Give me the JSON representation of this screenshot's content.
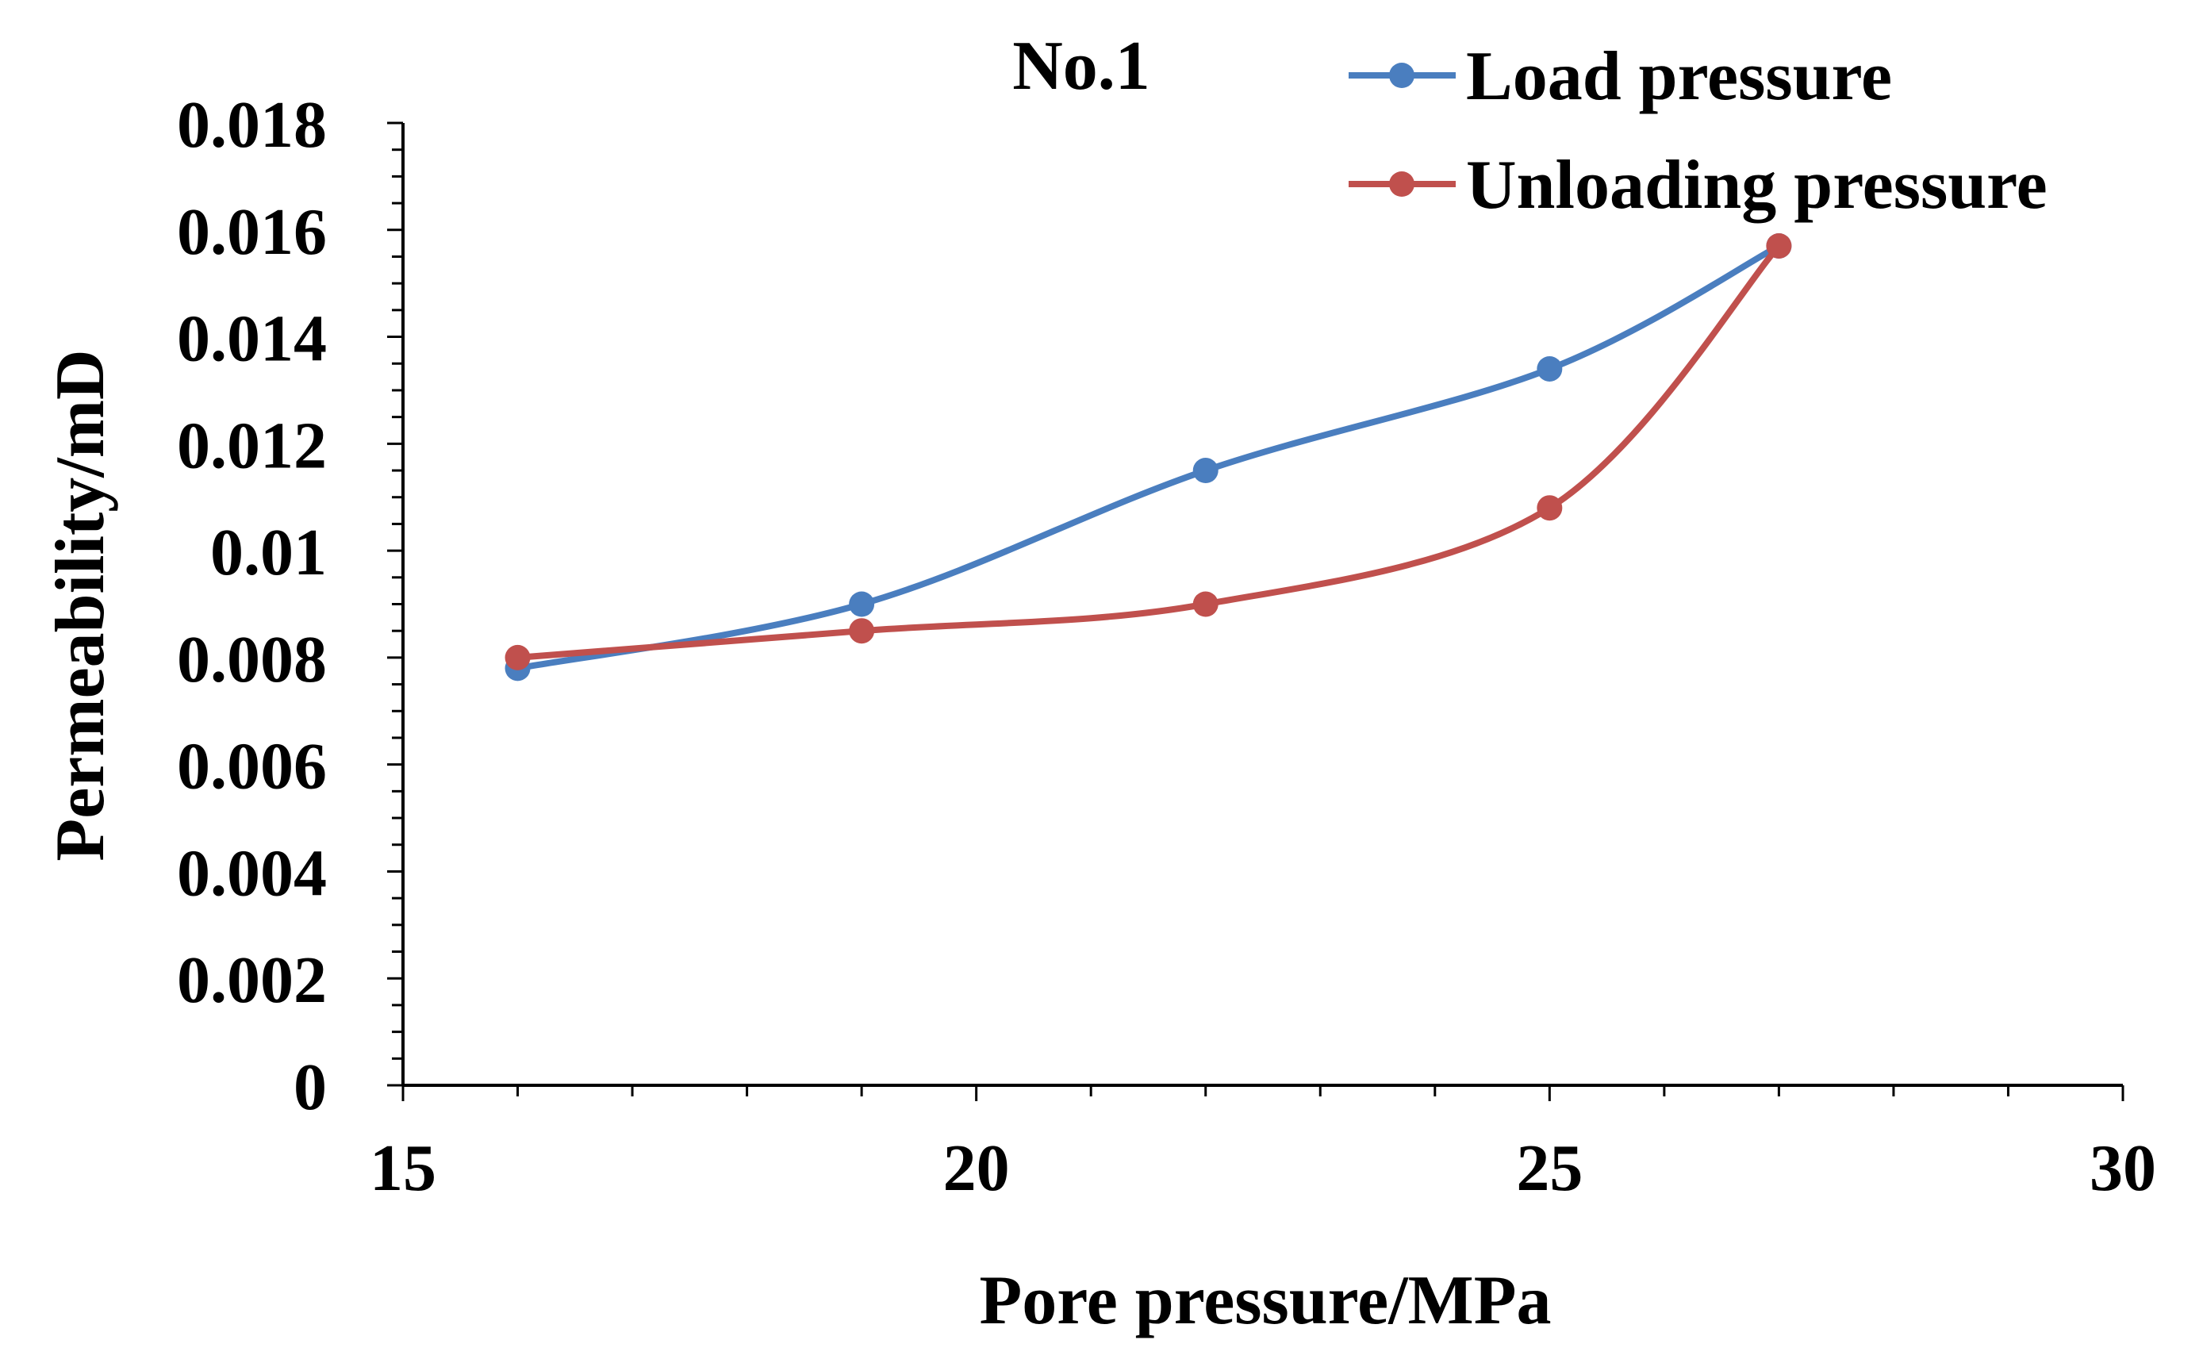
{
  "chart_data": {
    "type": "line",
    "title": "No.1",
    "xlabel": "Pore pressure/MPa",
    "ylabel": "Permeability/mD",
    "xlim": [
      15,
      30
    ],
    "ylim": [
      0,
      0.018
    ],
    "x_major_ticks": [
      15,
      20,
      25,
      30
    ],
    "x_tick_labels": [
      "15",
      "20",
      "25",
      "30"
    ],
    "x_minor_step": 1,
    "y_major_ticks": [
      0,
      0.002,
      0.004,
      0.006,
      0.008,
      0.01,
      0.012,
      0.014,
      0.016,
      0.018
    ],
    "y_tick_labels": [
      "0",
      "0.002",
      "0.004",
      "0.006",
      "0.008",
      "0.01",
      "0.012",
      "0.014",
      "0.016",
      "0.018"
    ],
    "y_minor_step": 0.0005,
    "grid": false,
    "legend_position": "top-right",
    "series": [
      {
        "name": "Load pressure",
        "color": "#4a7ebf",
        "x": [
          16,
          19,
          22,
          25,
          27
        ],
        "y": [
          0.0078,
          0.009,
          0.0115,
          0.0134,
          0.0157
        ]
      },
      {
        "name": "Unloading pressure",
        "color": "#c0504d",
        "x": [
          16,
          19,
          22,
          25,
          27
        ],
        "y": [
          0.008,
          0.0085,
          0.009,
          0.0108,
          0.0157
        ]
      }
    ]
  }
}
